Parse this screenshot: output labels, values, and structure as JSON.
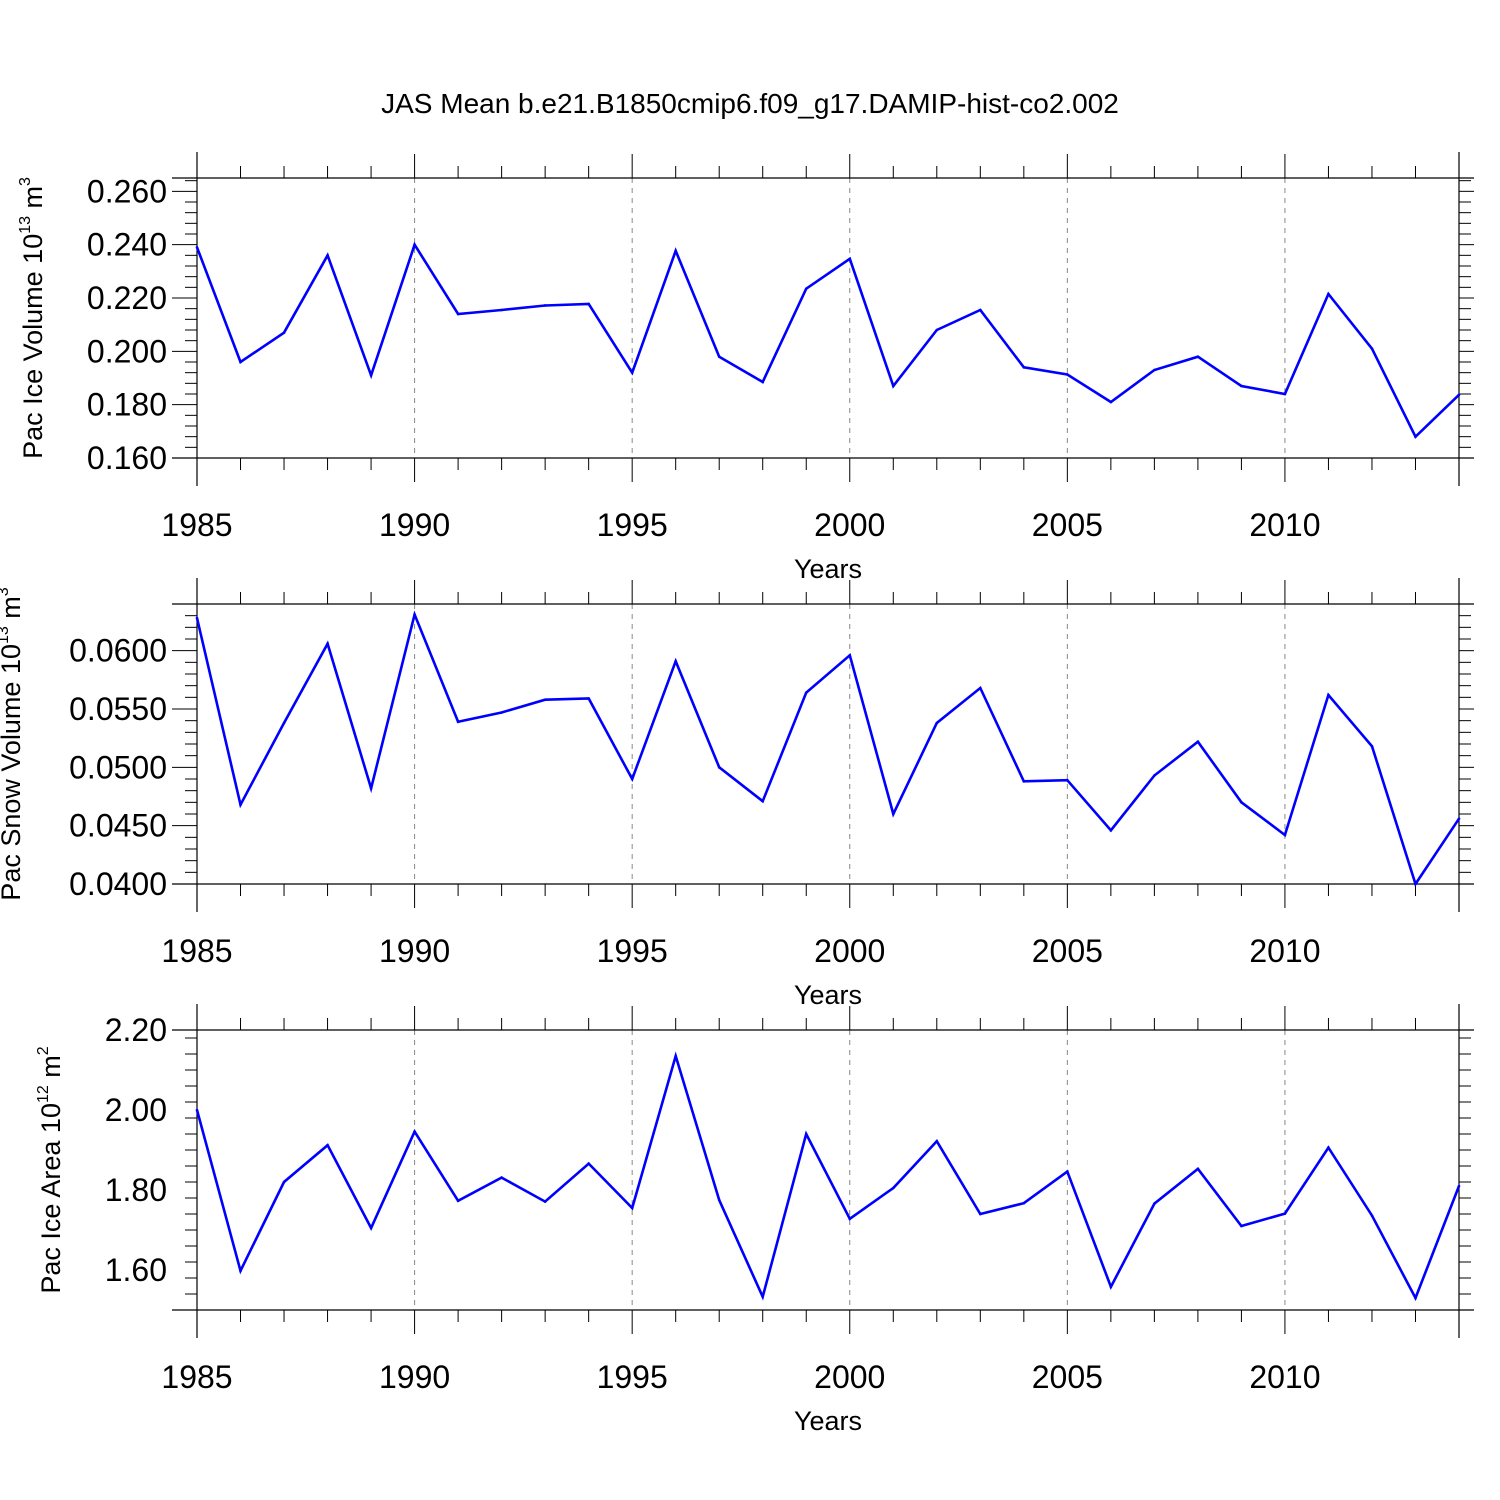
{
  "title": "JAS Mean b.e21.B1850cmip6.f09_g17.DAMIP-hist-co2.002",
  "colors": {
    "series": "#0000ff",
    "axis": "#000000",
    "grid": "#888888"
  },
  "chart_data": [
    {
      "type": "line",
      "ylabel": {
        "text": "Pac Ice Volume 10",
        "sup1": "13",
        "mid": " m",
        "sup2": "3"
      },
      "xlabel": "Years",
      "xlim": [
        1985,
        2014
      ],
      "ylim": [
        0.16,
        0.265
      ],
      "yticks": [
        "0.160",
        "0.180",
        "0.200",
        "0.220",
        "0.240",
        "0.260"
      ],
      "xticks": [
        "1985",
        "1990",
        "1995",
        "2000",
        "2005",
        "2010"
      ],
      "x": [
        1985,
        1986,
        1987,
        1988,
        1989,
        1990,
        1991,
        1992,
        1993,
        1994,
        1995,
        1996,
        1997,
        1998,
        1999,
        2000,
        2001,
        2002,
        2003,
        2004,
        2005,
        2006,
        2007,
        2008,
        2009,
        2010,
        2011,
        2012,
        2013,
        2014
      ],
      "values": [
        0.239,
        0.196,
        0.207,
        0.236,
        0.191,
        0.24,
        0.214,
        0.2155,
        0.2172,
        0.2178,
        0.192,
        0.2377,
        0.198,
        0.1885,
        0.2235,
        0.2347,
        0.187,
        0.208,
        0.2155,
        0.194,
        0.1913,
        0.181,
        0.193,
        0.198,
        0.187,
        0.184,
        0.2215,
        0.201,
        0.168,
        0.1837
      ]
    },
    {
      "type": "line",
      "ylabel": {
        "text": "Pac Snow Volume 10",
        "sup1": "13",
        "mid": " m",
        "sup2": "3"
      },
      "xlabel": "Years",
      "xlim": [
        1985,
        2014
      ],
      "ylim": [
        0.04,
        0.064
      ],
      "yticks": [
        "0.0400",
        "0.0450",
        "0.0500",
        "0.0550",
        "0.0600"
      ],
      "xticks": [
        "1985",
        "1990",
        "1995",
        "2000",
        "2005",
        "2010"
      ],
      "x": [
        1985,
        1986,
        1987,
        1988,
        1989,
        1990,
        1991,
        1992,
        1993,
        1994,
        1995,
        1996,
        1997,
        1998,
        1999,
        2000,
        2001,
        2002,
        2003,
        2004,
        2005,
        2006,
        2007,
        2008,
        2009,
        2010,
        2011,
        2012,
        2013,
        2014
      ],
      "values": [
        0.0628,
        0.0468,
        0.0538,
        0.0606,
        0.0482,
        0.0631,
        0.0539,
        0.0547,
        0.0558,
        0.0559,
        0.049,
        0.0591,
        0.05,
        0.0471,
        0.0564,
        0.0596,
        0.046,
        0.0538,
        0.0568,
        0.0488,
        0.0489,
        0.0446,
        0.0493,
        0.0522,
        0.047,
        0.0442,
        0.0562,
        0.0518,
        0.04,
        0.0456
      ]
    },
    {
      "type": "line",
      "ylabel": {
        "text": "Pac Ice Area 10",
        "sup1": "12",
        "mid": " m",
        "sup2": "2"
      },
      "xlabel": "Years",
      "xlim": [
        1985,
        2014
      ],
      "ylim": [
        1.5,
        2.2
      ],
      "yticks": [
        "1.60",
        "1.80",
        "2.00",
        "2.20"
      ],
      "xticks": [
        "1985",
        "1990",
        "1995",
        "2000",
        "2005",
        "2010"
      ],
      "x": [
        1985,
        1986,
        1987,
        1988,
        1989,
        1990,
        1991,
        1992,
        1993,
        1994,
        1995,
        1996,
        1997,
        1998,
        1999,
        2000,
        2001,
        2002,
        2003,
        2004,
        2005,
        2006,
        2007,
        2008,
        2009,
        2010,
        2011,
        2012,
        2013,
        2014
      ],
      "values": [
        2.0,
        1.598,
        1.82,
        1.912,
        1.705,
        1.946,
        1.773,
        1.831,
        1.771,
        1.866,
        1.755,
        2.135,
        1.775,
        1.533,
        1.94,
        1.728,
        1.805,
        1.922,
        1.74,
        1.767,
        1.846,
        1.558,
        1.766,
        1.853,
        1.71,
        1.741,
        1.906,
        1.736,
        1.53,
        1.81
      ]
    }
  ]
}
